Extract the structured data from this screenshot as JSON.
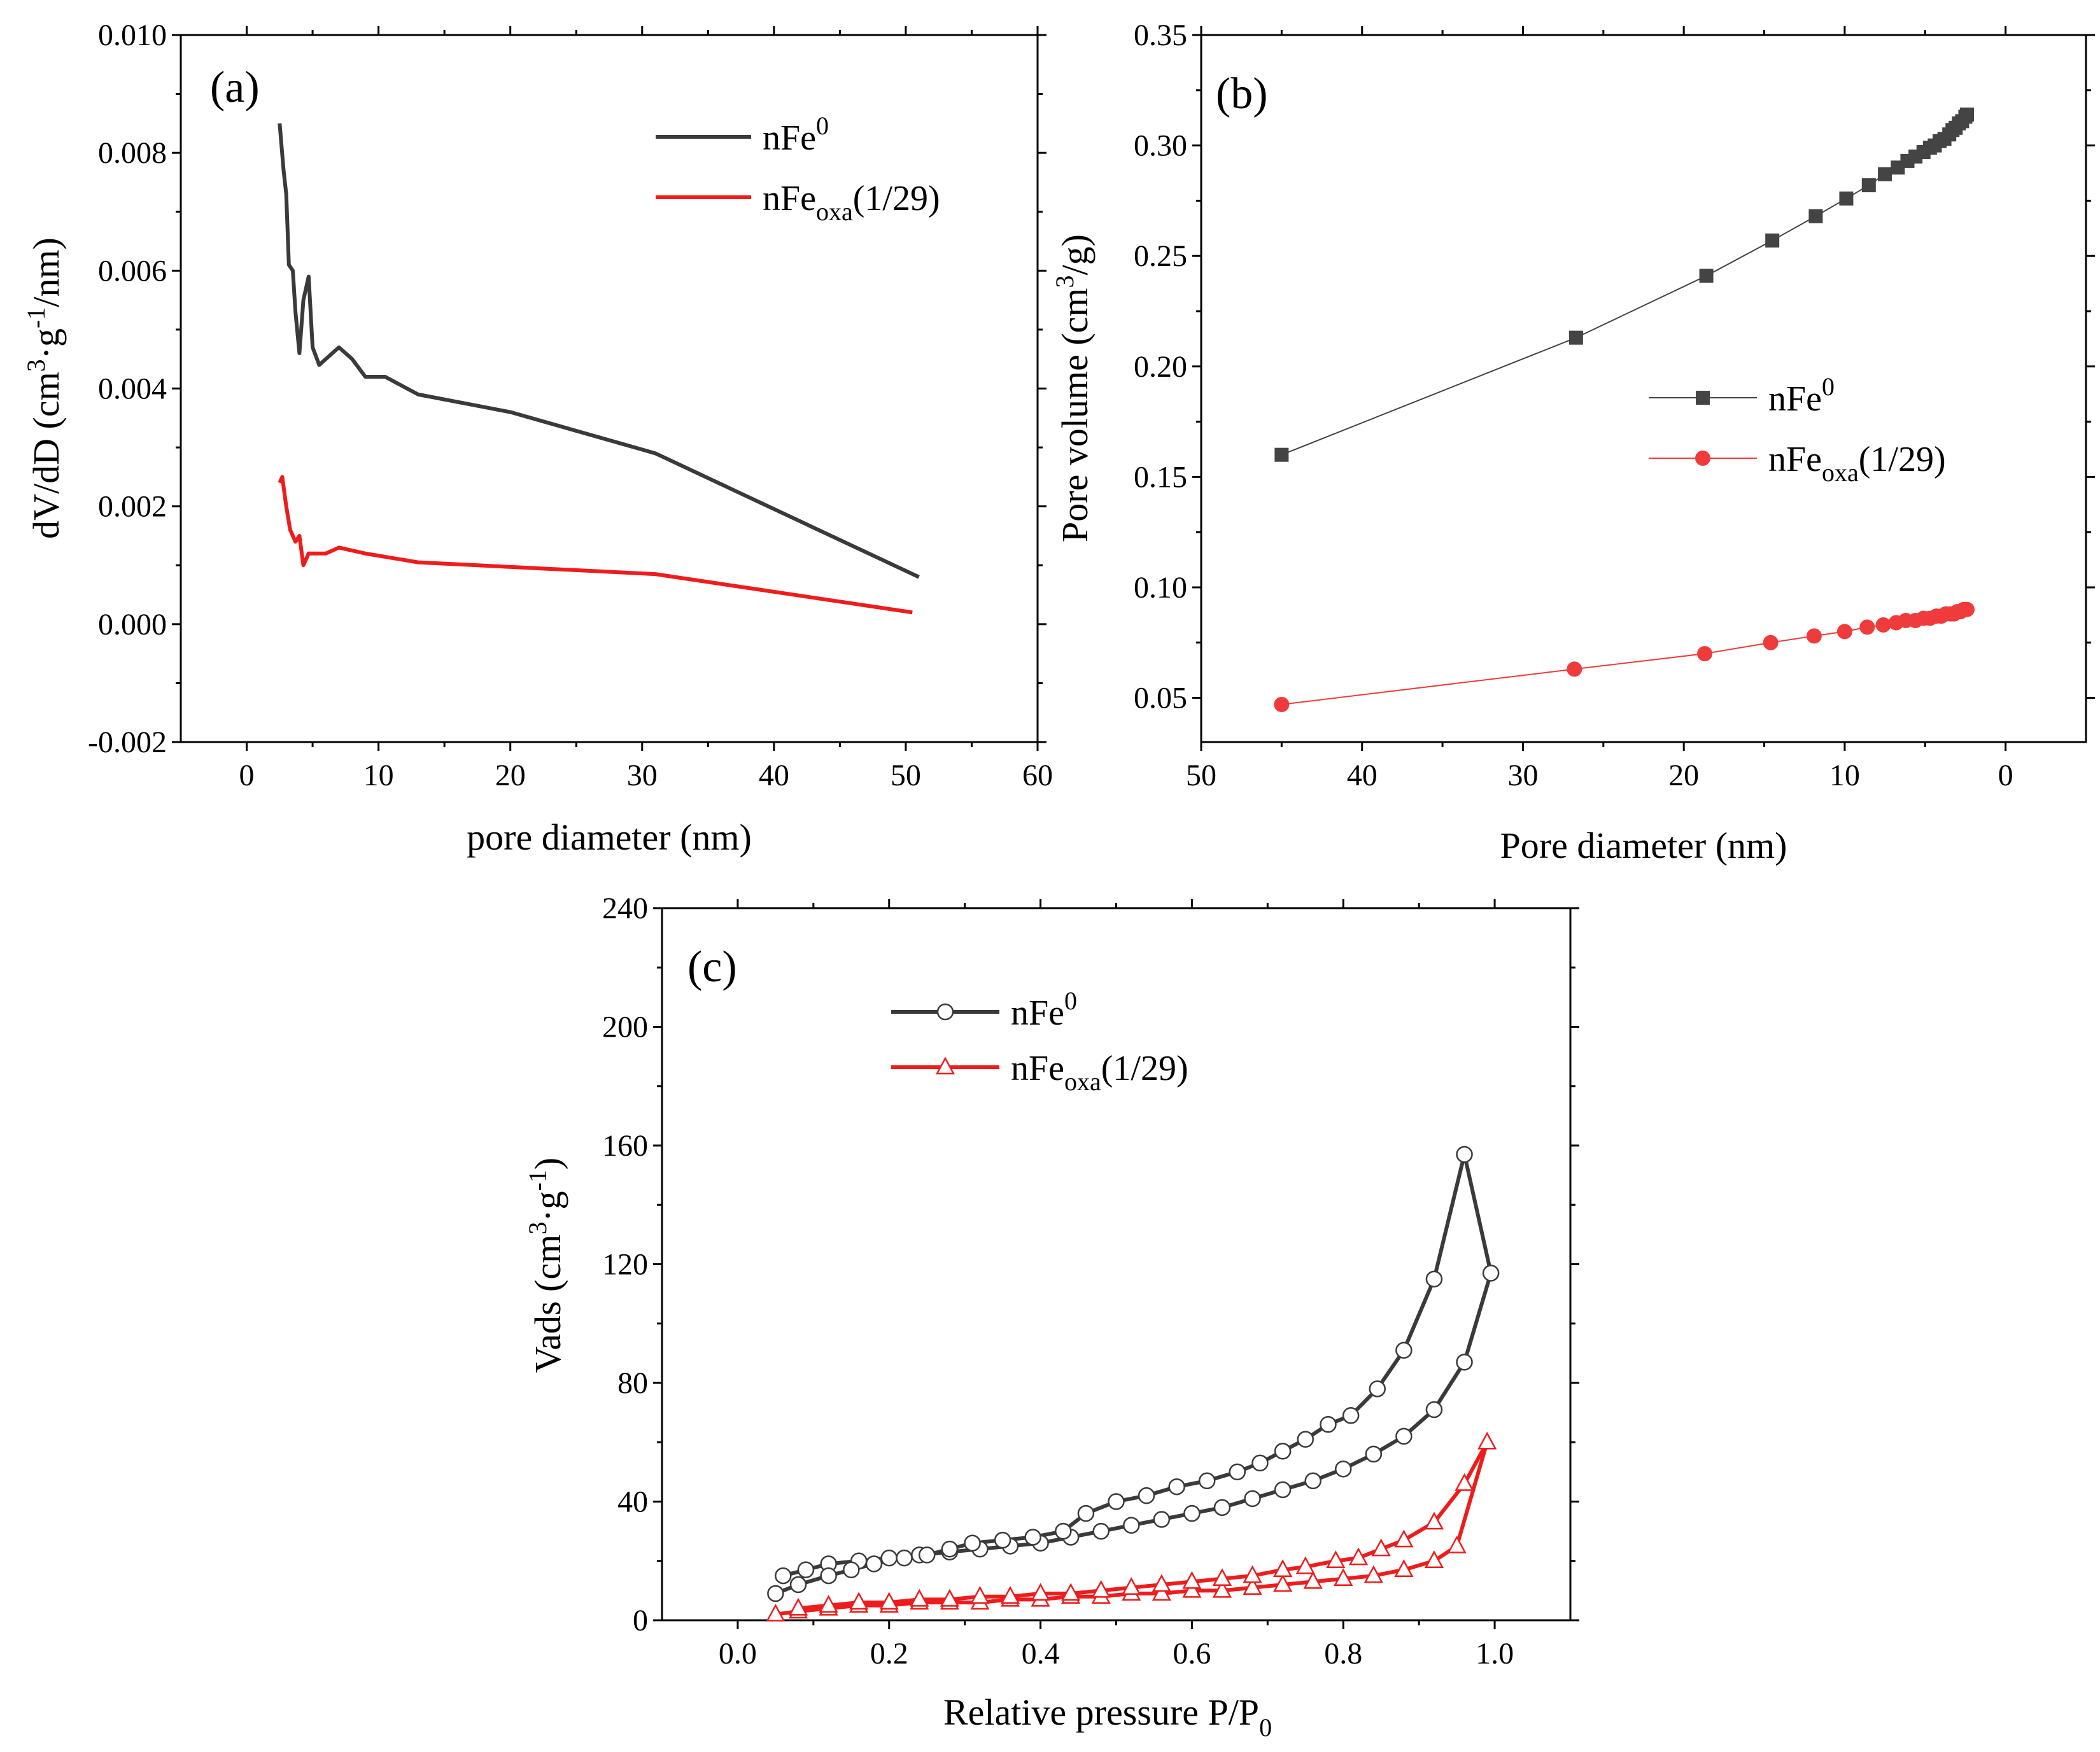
{
  "figure": {
    "panels": {
      "a": {
        "label": "(a)"
      },
      "b": {
        "label": "(b)"
      },
      "c": {
        "label": "(c)"
      }
    }
  },
  "chart_data": [
    {
      "id": "a",
      "type": "line",
      "panel_label": "(a)",
      "xlabel": "pore diameter (nm)",
      "ylabel": "dV/dD (cm³·g⁻¹/nm)",
      "xlim": [
        -5,
        60
      ],
      "ylim": [
        -0.002,
        0.01
      ],
      "xticks": [
        0,
        10,
        20,
        30,
        40,
        50,
        60
      ],
      "yticks": [
        -0.002,
        0.0,
        0.002,
        0.004,
        0.006,
        0.008,
        0.01
      ],
      "ytick_labels": [
        "-0.002",
        "0.000",
        "0.002",
        "0.004",
        "0.006",
        "0.008",
        "0.010"
      ],
      "legend_position": "top-right",
      "series": [
        {
          "name": "nFe0",
          "legend_base": "nFe",
          "legend_sup": "0",
          "color": "#3a3a3a",
          "x": [
            2.5,
            2.8,
            3.0,
            3.2,
            3.5,
            3.7,
            4.0,
            4.3,
            4.7,
            5.0,
            5.5,
            6.0,
            7.0,
            8.0,
            9.0,
            10.5,
            13.0,
            20.0,
            31.0,
            51.0
          ],
          "y": [
            0.0085,
            0.0077,
            0.0073,
            0.0061,
            0.006,
            0.0053,
            0.0046,
            0.0055,
            0.0059,
            0.0047,
            0.0044,
            0.0045,
            0.0047,
            0.0045,
            0.0042,
            0.0042,
            0.0039,
            0.0036,
            0.0029,
            0.0008
          ]
        },
        {
          "name": "nFeoxa(1/29)",
          "legend_base": "nFe",
          "legend_sub": "oxa",
          "legend_suffix": "(1/29)",
          "color": "#ee1c1c",
          "x": [
            2.5,
            2.7,
            3.0,
            3.3,
            3.7,
            4.0,
            4.3,
            4.7,
            5.2,
            6.0,
            7.0,
            8.0,
            9.0,
            13.0,
            31.0,
            50.5
          ],
          "y": [
            0.0024,
            0.0025,
            0.002,
            0.0016,
            0.0014,
            0.0015,
            0.001,
            0.0012,
            0.0012,
            0.0012,
            0.0013,
            0.00125,
            0.0012,
            0.00105,
            0.00085,
            0.0002
          ]
        }
      ]
    },
    {
      "id": "b",
      "type": "line",
      "panel_label": "(b)",
      "xlabel": "Pore diameter (nm)",
      "ylabel": "Pore volume (cm³/g)",
      "xlim": [
        50,
        -5
      ],
      "ylim": [
        0.03,
        0.35
      ],
      "xticks": [
        50,
        40,
        30,
        20,
        10,
        0
      ],
      "yticks": [
        0.05,
        0.1,
        0.15,
        0.2,
        0.25,
        0.3,
        0.35
      ],
      "ytick_labels": [
        "0.05",
        "0.10",
        "0.15",
        "0.20",
        "0.25",
        "0.30",
        "0.35"
      ],
      "legend_position": "center-right",
      "series": [
        {
          "name": "nFe0",
          "legend_base": "nFe",
          "legend_sup": "0",
          "marker": "square",
          "color": "#444444",
          "x": [
            45,
            26.7,
            18.6,
            14.5,
            11.8,
            9.9,
            8.5,
            7.5,
            6.7,
            6.1,
            5.6,
            5.1,
            4.7,
            4.4,
            4.1,
            3.8,
            3.5,
            3.3,
            3.1,
            2.9,
            2.7,
            2.5,
            2.4
          ],
          "y": [
            0.16,
            0.213,
            0.241,
            0.257,
            0.268,
            0.276,
            0.282,
            0.287,
            0.29,
            0.293,
            0.295,
            0.297,
            0.299,
            0.3,
            0.302,
            0.303,
            0.305,
            0.307,
            0.308,
            0.31,
            0.311,
            0.313,
            0.314
          ]
        },
        {
          "name": "nFeoxa(1/29)",
          "legend_base": "nFe",
          "legend_sub": "oxa",
          "legend_suffix": "(1/29)",
          "marker": "circle",
          "color": "#ef3b3b",
          "x": [
            45,
            26.8,
            18.7,
            14.6,
            11.9,
            10.0,
            8.6,
            7.6,
            6.8,
            6.2,
            5.6,
            5.1,
            4.7,
            4.3,
            4.0,
            3.7,
            3.4,
            3.2,
            3.0,
            2.8,
            2.6,
            2.4
          ],
          "y": [
            0.047,
            0.063,
            0.07,
            0.075,
            0.078,
            0.08,
            0.082,
            0.083,
            0.084,
            0.085,
            0.085,
            0.086,
            0.086,
            0.087,
            0.087,
            0.088,
            0.088,
            0.088,
            0.089,
            0.089,
            0.09,
            0.09
          ]
        }
      ]
    },
    {
      "id": "c",
      "type": "line",
      "panel_label": "(c)",
      "xlabel": "Relative pressure P/P0",
      "xlabel_base": "Relative pressure P/P",
      "xlabel_sub": "0",
      "ylabel": "Vads (cm³·g⁻¹)",
      "xlim": [
        -0.1,
        1.1
      ],
      "ylim": [
        0,
        240
      ],
      "xticks": [
        0.0,
        0.2,
        0.4,
        0.6,
        0.8,
        1.0
      ],
      "xtick_labels": [
        "0.0",
        "0.2",
        "0.4",
        "0.6",
        "0.8",
        "1.0"
      ],
      "yticks": [
        0,
        40,
        80,
        120,
        160,
        200,
        240
      ],
      "legend_position": "top-left",
      "series": [
        {
          "name": "nFe0",
          "legend_base": "nFe",
          "legend_sup": "0",
          "marker": "open-circle",
          "color": "#3a3a3a",
          "x": [
            0.06,
            0.09,
            0.12,
            0.16,
            0.2,
            0.24,
            0.28,
            0.32,
            0.36,
            0.4,
            0.44,
            0.48,
            0.52,
            0.56,
            0.6,
            0.64,
            0.68,
            0.72,
            0.76,
            0.8,
            0.84,
            0.88,
            0.92,
            0.96,
            0.995,
            0.96,
            0.92,
            0.88,
            0.845,
            0.81,
            0.78,
            0.75,
            0.72,
            0.69,
            0.66,
            0.62,
            0.58,
            0.54,
            0.5,
            0.46,
            0.43,
            0.39,
            0.35,
            0.31,
            0.28,
            0.25,
            0.22,
            0.18,
            0.15,
            0.12,
            0.08,
            0.05
          ],
          "y": [
            15,
            17,
            19,
            20,
            21,
            22,
            23,
            24,
            25,
            26,
            28,
            30,
            32,
            34,
            36,
            38,
            41,
            44,
            47,
            51,
            56,
            62,
            71,
            87,
            117,
            157,
            115,
            91,
            78,
            69,
            66,
            61,
            57,
            53,
            50,
            47,
            45,
            42,
            40,
            36,
            30,
            28,
            27,
            26,
            24,
            22,
            21,
            19,
            17,
            15,
            12,
            9
          ]
        },
        {
          "name": "nFeoxa(1/29)",
          "legend_base": "nFe",
          "legend_sub": "oxa",
          "legend_suffix": "(1/29)",
          "marker": "open-triangle",
          "color": "#ee1c1c",
          "x": [
            0.05,
            0.08,
            0.12,
            0.16,
            0.2,
            0.24,
            0.28,
            0.32,
            0.36,
            0.4,
            0.44,
            0.48,
            0.52,
            0.56,
            0.6,
            0.64,
            0.68,
            0.72,
            0.76,
            0.8,
            0.84,
            0.88,
            0.92,
            0.95,
            0.99,
            0.96,
            0.92,
            0.88,
            0.85,
            0.82,
            0.79,
            0.75,
            0.72,
            0.68,
            0.64,
            0.6,
            0.56,
            0.52,
            0.48,
            0.44,
            0.4,
            0.36,
            0.32,
            0.28,
            0.24,
            0.2,
            0.16,
            0.12,
            0.08
          ],
          "y": [
            2,
            3,
            4,
            5,
            5,
            6,
            6,
            6,
            7,
            7,
            8,
            8,
            9,
            9,
            10,
            10,
            11,
            12,
            13,
            14,
            15,
            17,
            20,
            25,
            60,
            46,
            33,
            27,
            24,
            21,
            20,
            18,
            17,
            15,
            14,
            13,
            12,
            11,
            10,
            9,
            9,
            8,
            8,
            7,
            7,
            6,
            6,
            5,
            4
          ]
        }
      ]
    }
  ]
}
